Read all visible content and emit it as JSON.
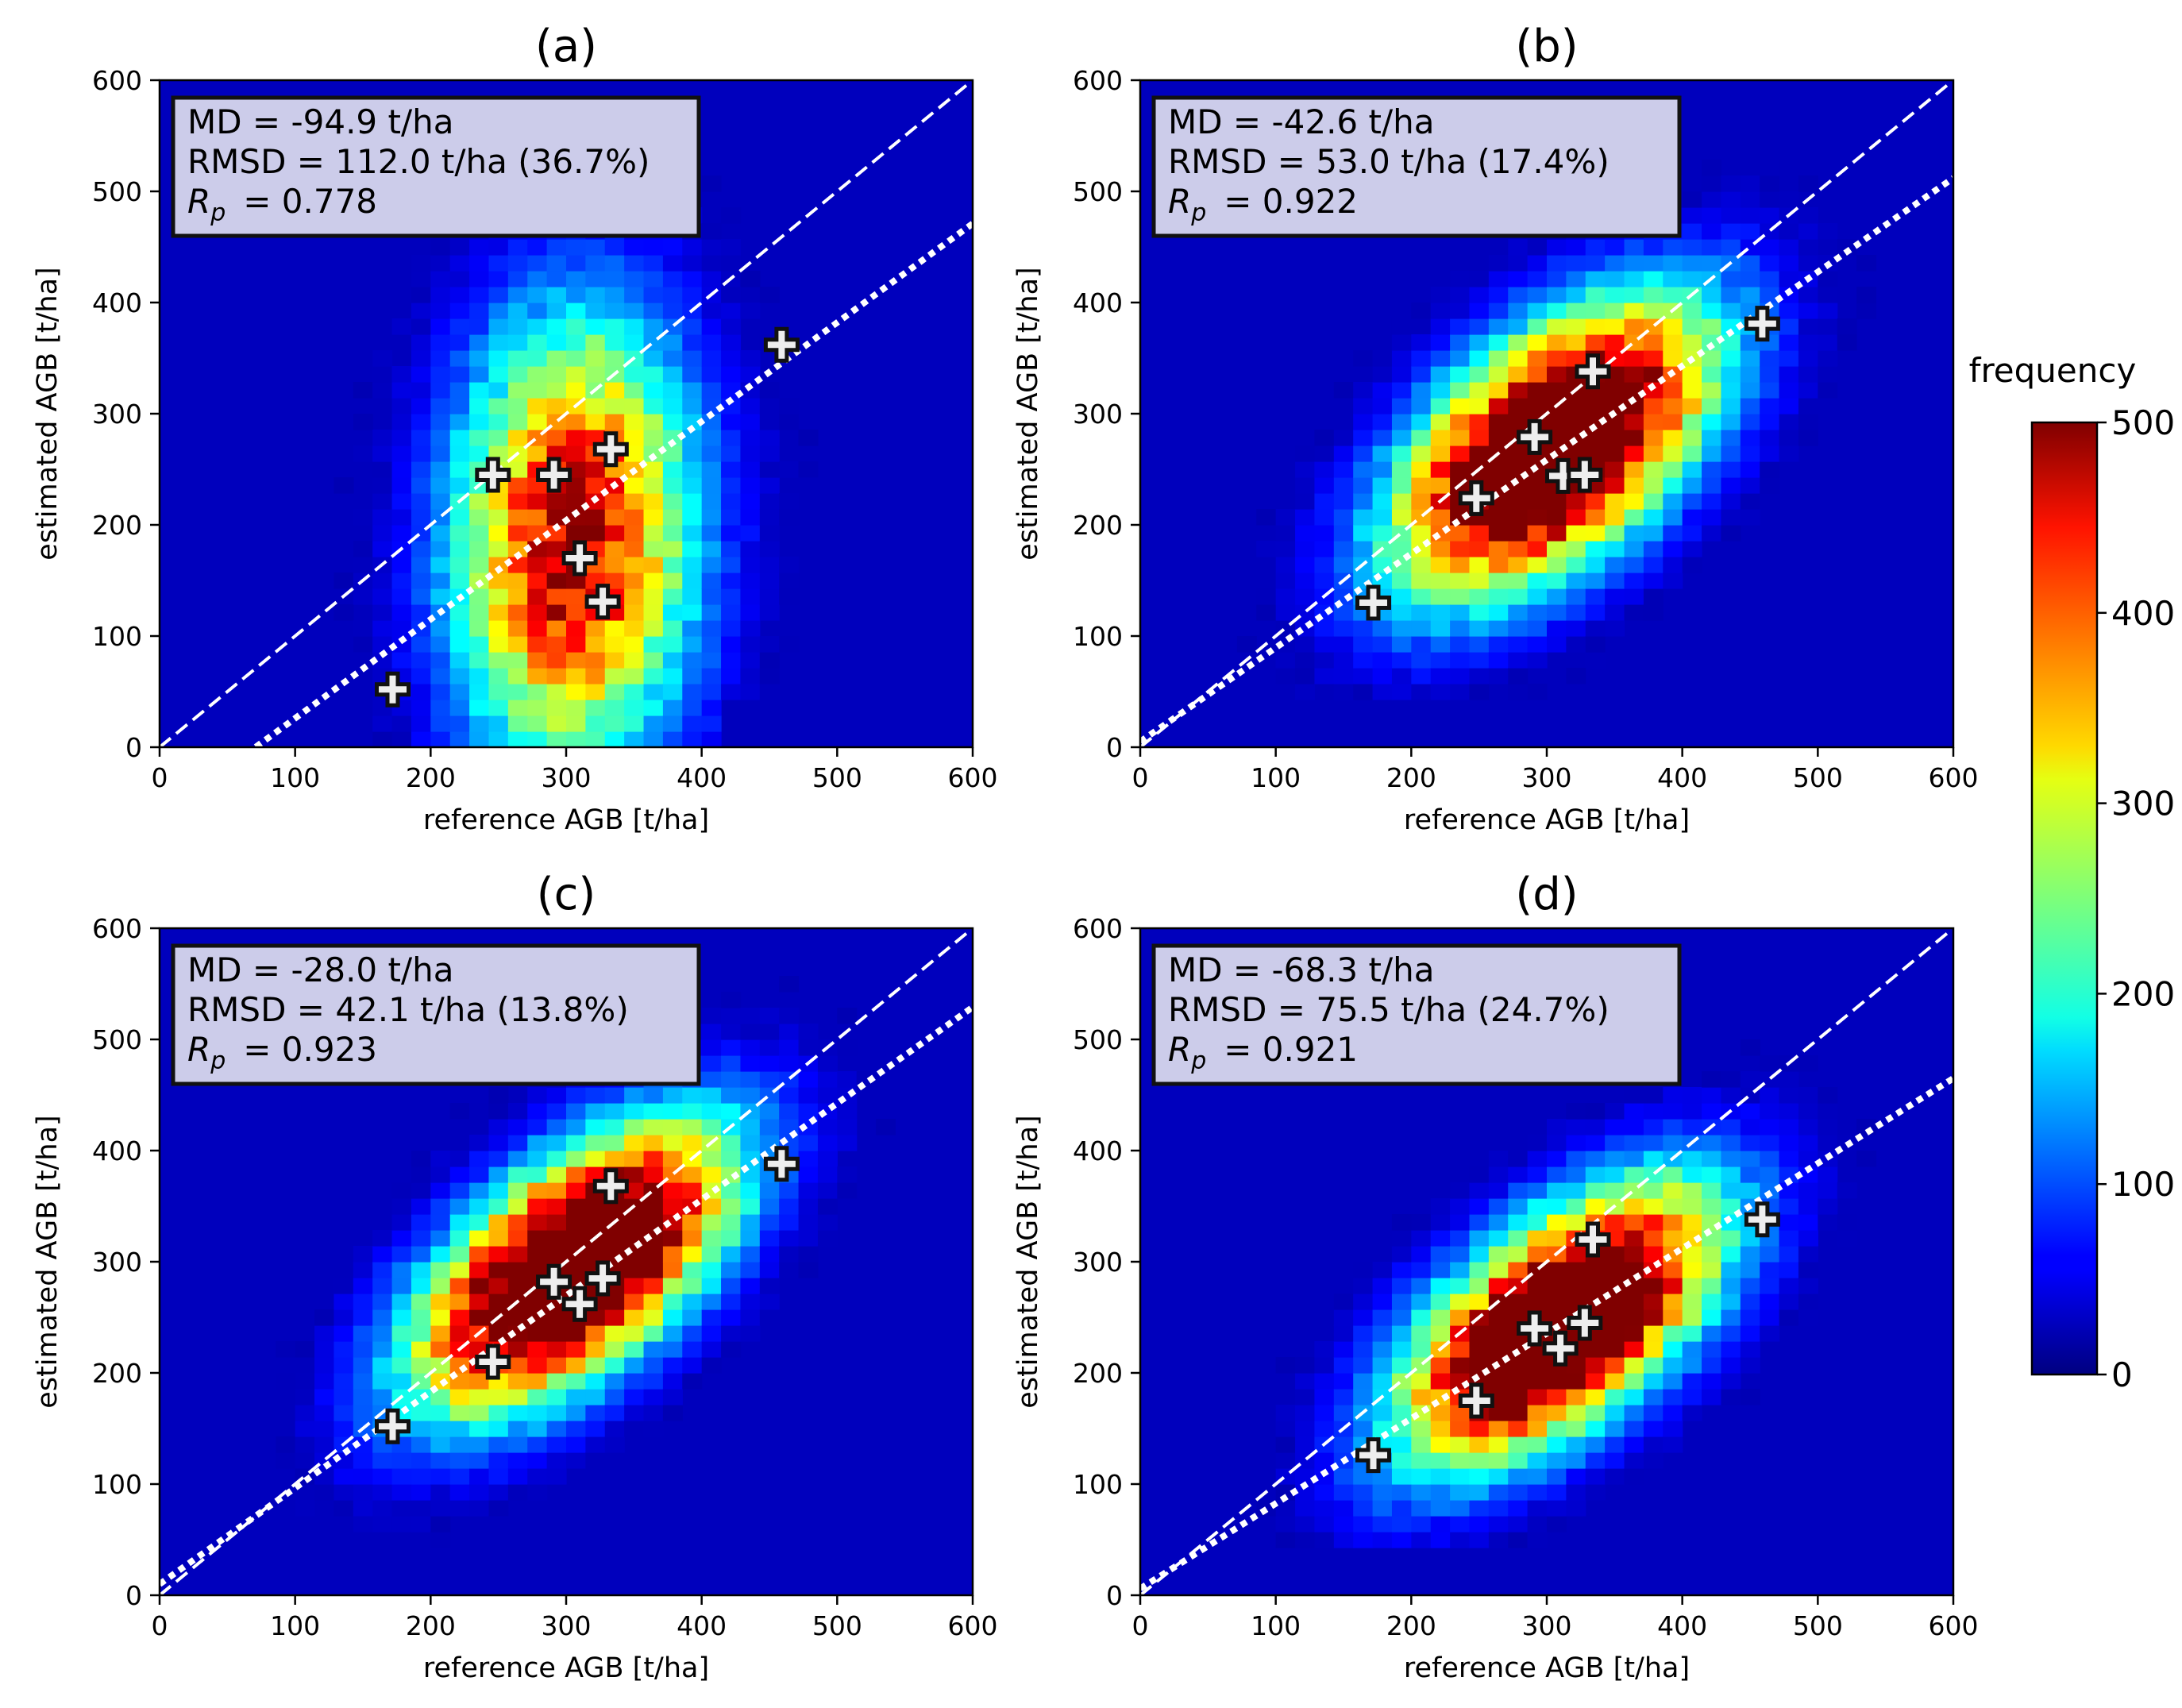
{
  "colorbar": {
    "label": "frequency",
    "range": [
      0,
      500
    ],
    "ticks": [
      "0",
      "100",
      "200",
      "300",
      "400",
      "500"
    ],
    "colormap": "jet"
  },
  "chart_data": [
    {
      "type": "heatmap",
      "panel": "(a)",
      "title": "(a)",
      "xlabel": "reference AGB [t/ha]",
      "ylabel": "estimated AGB [t/ha]",
      "xlim": [
        0,
        600
      ],
      "ylim": [
        0,
        600
      ],
      "xticks": [
        "0",
        "100",
        "200",
        "300",
        "400",
        "500",
        "600"
      ],
      "yticks": [
        "0",
        "100",
        "200",
        "300",
        "400",
        "500",
        "600"
      ],
      "stats": {
        "md": "MD = -94.9 t/ha",
        "rmsd": "RMSD = 112.0 t/ha (36.7%)",
        "rp_symbol": "R",
        "rp_sub": "p",
        "rp_value": "= 0.778"
      },
      "density": {
        "cx": 305,
        "cy": 185,
        "sx": 50,
        "sy": 115,
        "rho": 0.05,
        "peak": 480,
        "spread": 1.5
      },
      "one_to_one": {
        "slope": 1,
        "intercept": 0
      },
      "fit_line": {
        "slope": 0.89,
        "intercept": -63
      },
      "points": [
        {
          "x": 172,
          "y": 52
        },
        {
          "x": 246,
          "y": 245
        },
        {
          "x": 291,
          "y": 245
        },
        {
          "x": 310,
          "y": 170
        },
        {
          "x": 327,
          "y": 131
        },
        {
          "x": 333,
          "y": 268
        },
        {
          "x": 459,
          "y": 362
        }
      ]
    },
    {
      "type": "heatmap",
      "panel": "(b)",
      "title": "(b)",
      "xlabel": "reference AGB [t/ha]",
      "ylabel": "estimated AGB [t/ha]",
      "xlim": [
        0,
        600
      ],
      "ylim": [
        0,
        600
      ],
      "xticks": [
        "0",
        "100",
        "200",
        "300",
        "400",
        "500",
        "600"
      ],
      "yticks": [
        "0",
        "100",
        "200",
        "300",
        "400",
        "500",
        "600"
      ],
      "stats": {
        "md": "MD = -42.6 t/ha",
        "rmsd": "RMSD = 53.0 t/ha (17.4%)",
        "rp_symbol": "R",
        "rp_sub": "p",
        "rp_value": "= 0.922"
      },
      "density": {
        "cx": 305,
        "cy": 270,
        "sx": 62,
        "sy": 70,
        "rho": 0.55,
        "peak": 720,
        "spread": 1.6
      },
      "one_to_one": {
        "slope": 1,
        "intercept": 0
      },
      "fit_line": {
        "slope": 0.845,
        "intercept": 5
      },
      "points": [
        {
          "x": 172,
          "y": 130
        },
        {
          "x": 248,
          "y": 224
        },
        {
          "x": 291,
          "y": 279
        },
        {
          "x": 312,
          "y": 244
        },
        {
          "x": 328,
          "y": 245
        },
        {
          "x": 334,
          "y": 338
        },
        {
          "x": 459,
          "y": 381
        }
      ]
    },
    {
      "type": "heatmap",
      "panel": "(c)",
      "title": "(c)",
      "xlabel": "reference AGB [t/ha]",
      "ylabel": "estimated AGB [t/ha]",
      "xlim": [
        0,
        600
      ],
      "ylim": [
        0,
        600
      ],
      "xticks": [
        "0",
        "100",
        "200",
        "300",
        "400",
        "500",
        "600"
      ],
      "yticks": [
        "0",
        "100",
        "200",
        "300",
        "400",
        "500",
        "600"
      ],
      "stats": {
        "md": "MD = -28.0 t/ha",
        "rmsd": "RMSD = 42.1 t/ha (13.8%)",
        "rp_symbol": "R",
        "rp_sub": "p",
        "rp_value": "= 0.923"
      },
      "density": {
        "cx": 305,
        "cy": 295,
        "sx": 62,
        "sy": 68,
        "rho": 0.6,
        "peak": 720,
        "spread": 1.6
      },
      "one_to_one": {
        "slope": 1,
        "intercept": 0
      },
      "fit_line": {
        "slope": 0.865,
        "intercept": 10
      },
      "points": [
        {
          "x": 172,
          "y": 152
        },
        {
          "x": 246,
          "y": 210
        },
        {
          "x": 291,
          "y": 282
        },
        {
          "x": 310,
          "y": 262
        },
        {
          "x": 327,
          "y": 285
        },
        {
          "x": 333,
          "y": 368
        },
        {
          "x": 459,
          "y": 388
        }
      ]
    },
    {
      "type": "heatmap",
      "panel": "(d)",
      "title": "(d)",
      "xlabel": "reference AGB [t/ha]",
      "ylabel": "estimated AGB [t/ha]",
      "xlim": [
        0,
        600
      ],
      "ylim": [
        0,
        600
      ],
      "xticks": [
        "0",
        "100",
        "200",
        "300",
        "400",
        "500",
        "600"
      ],
      "yticks": [
        "0",
        "100",
        "200",
        "300",
        "400",
        "500",
        "600"
      ],
      "stats": {
        "md": "MD = -68.3 t/ha",
        "rmsd": "RMSD = 75.5 t/ha (24.7%)",
        "rp_symbol": "R",
        "rp_sub": "p",
        "rp_value": "= 0.921"
      },
      "density": {
        "cx": 310,
        "cy": 245,
        "sx": 62,
        "sy": 66,
        "rho": 0.6,
        "peak": 720,
        "spread": 1.6
      },
      "one_to_one": {
        "slope": 1,
        "intercept": 0
      },
      "fit_line": {
        "slope": 0.765,
        "intercept": 6
      },
      "points": [
        {
          "x": 172,
          "y": 126
        },
        {
          "x": 248,
          "y": 175
        },
        {
          "x": 291,
          "y": 240
        },
        {
          "x": 310,
          "y": 222
        },
        {
          "x": 328,
          "y": 245
        },
        {
          "x": 334,
          "y": 320
        },
        {
          "x": 459,
          "y": 338
        }
      ]
    }
  ]
}
